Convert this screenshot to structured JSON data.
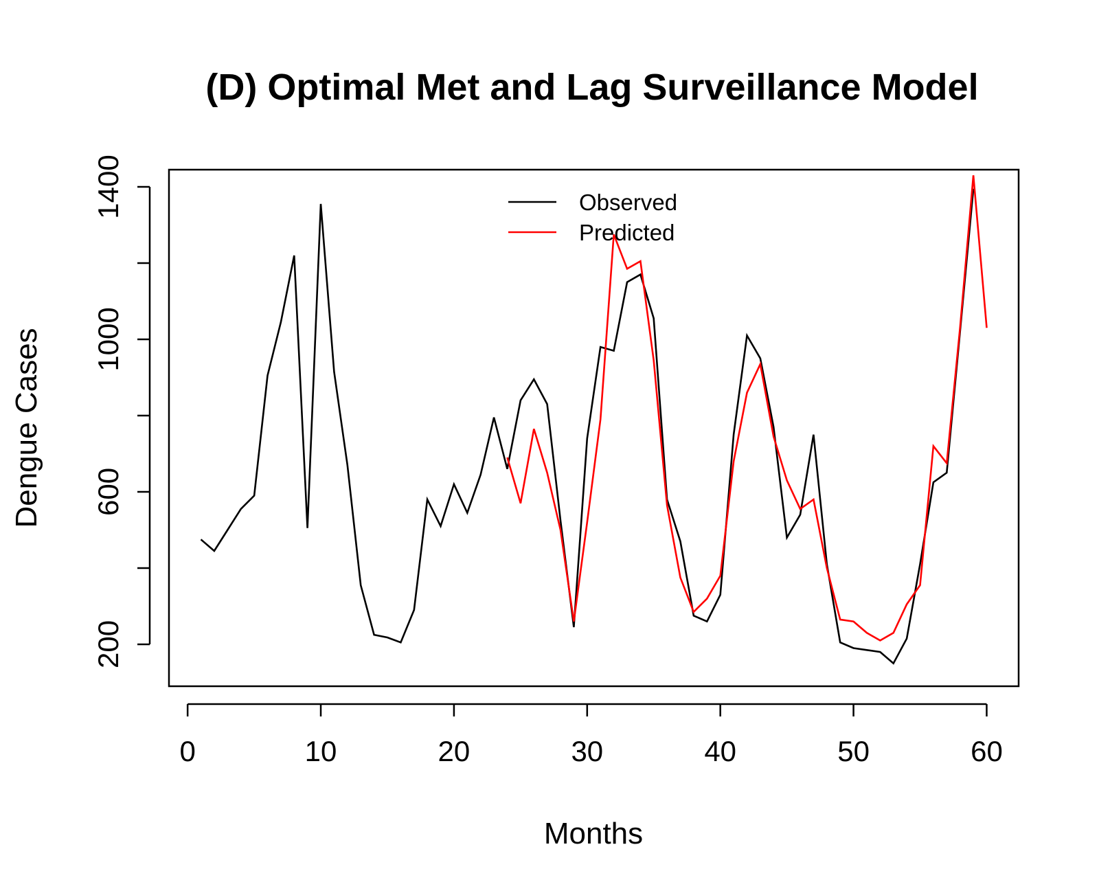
{
  "chart_data": {
    "type": "line",
    "title": "(D) Optimal Met and Lag Surveillance Model",
    "xlabel": "Months",
    "ylabel": "Dengue Cases",
    "xlim": [
      -1.4,
      62.4
    ],
    "ylim": [
      90,
      1445
    ],
    "x_ticks": [
      0,
      10,
      20,
      30,
      40,
      50,
      60
    ],
    "y_ticks": [
      200,
      600,
      1000,
      1400
    ],
    "y_minor_ticks": [
      400,
      800,
      1200
    ],
    "grid": false,
    "legend_position": "top-center",
    "series": [
      {
        "name": "Observed",
        "color": "#000000",
        "x": [
          1,
          2,
          3,
          4,
          5,
          6,
          7,
          8,
          9,
          10,
          11,
          12,
          13,
          14,
          15,
          16,
          17,
          18,
          19,
          20,
          21,
          22,
          23,
          24,
          25,
          26,
          27,
          28,
          29,
          30,
          31,
          32,
          33,
          34,
          35,
          36,
          37,
          38,
          39,
          40,
          41,
          42,
          43,
          44,
          45,
          46,
          47,
          48,
          49,
          50,
          51,
          52,
          53,
          54,
          55,
          56,
          57,
          58,
          59,
          60
        ],
        "values": [
          475,
          445,
          500,
          555,
          590,
          905,
          1045,
          1220,
          505,
          1355,
          915,
          670,
          355,
          225,
          218,
          205,
          290,
          580,
          510,
          620,
          545,
          645,
          795,
          660,
          840,
          895,
          830,
          525,
          245,
          740,
          980,
          970,
          1150,
          1170,
          1055,
          580,
          470,
          275,
          260,
          330,
          750,
          1010,
          950,
          770,
          480,
          540,
          750,
          410,
          205,
          190,
          185,
          180,
          150,
          215,
          410,
          625,
          650,
          1020,
          1395,
          null
        ]
      },
      {
        "name": "Predicted",
        "color": "#ff0000",
        "x": [
          24,
          25,
          26,
          27,
          28,
          29,
          30,
          31,
          32,
          33,
          34,
          35,
          36,
          37,
          38,
          39,
          40,
          41,
          42,
          43,
          44,
          45,
          46,
          47,
          48,
          49,
          50,
          51,
          52,
          53,
          54,
          55,
          56,
          57,
          58,
          59,
          60
        ],
        "values": [
          690,
          570,
          765,
          650,
          500,
          260,
          520,
          790,
          1275,
          1185,
          1205,
          945,
          565,
          375,
          285,
          320,
          380,
          680,
          860,
          935,
          745,
          630,
          555,
          580,
          400,
          265,
          260,
          230,
          210,
          230,
          305,
          355,
          720,
          675,
          1030,
          1430,
          1030
        ]
      }
    ]
  }
}
